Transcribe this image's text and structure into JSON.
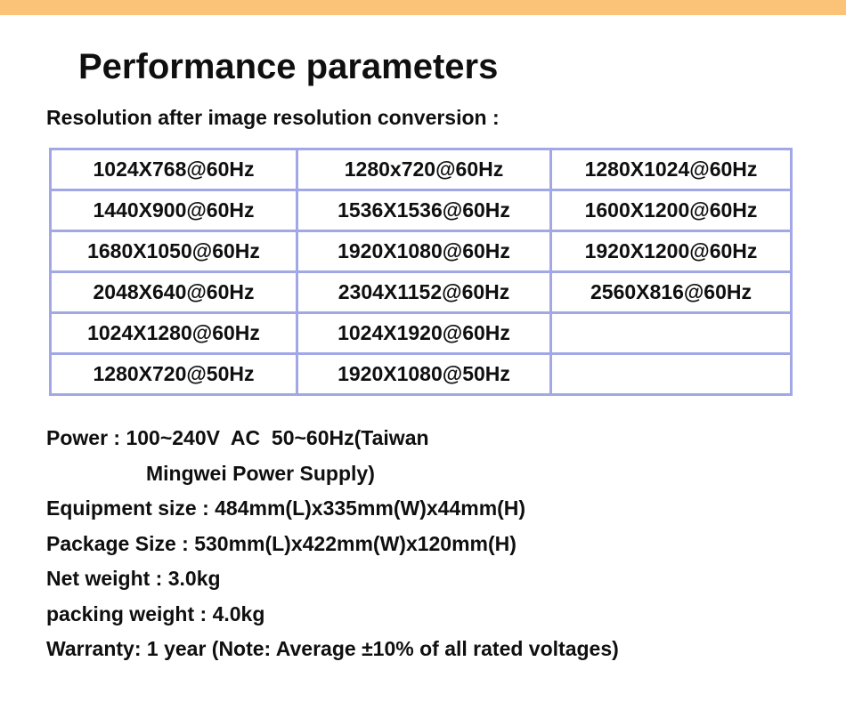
{
  "page": {
    "accent_bar_color": "#FAC377",
    "title": "Performance parameters",
    "subtitle": "Resolution after image resolution conversion :"
  },
  "table": {
    "border_color": "#A2A7E6",
    "columns": 3,
    "rows": [
      [
        "1024X768@60Hz",
        "1280x720@60Hz",
        "1280X1024@60Hz"
      ],
      [
        "1440X900@60Hz",
        "1536X1536@60Hz",
        "1600X1200@60Hz"
      ],
      [
        "1680X1050@60Hz",
        "1920X1080@60Hz",
        "1920X1200@60Hz"
      ],
      [
        "2048X640@60Hz",
        "2304X1152@60Hz",
        "2560X816@60Hz"
      ],
      [
        "1024X1280@60Hz",
        "1024X1920@60Hz",
        ""
      ],
      [
        "1280X720@50Hz",
        "1920X1080@50Hz",
        ""
      ]
    ]
  },
  "specs": {
    "lines": [
      {
        "text": "Power : 100~240V  AC  50~60Hz(Taiwan",
        "indent": false
      },
      {
        "text": "Mingwei Power Supply)",
        "indent": true
      },
      {
        "text": "Equipment size : 484mm(L)x335mm(W)x44mm(H)",
        "indent": false
      },
      {
        "text": "Package Size : 530mm(L)x422mm(W)x120mm(H)",
        "indent": false
      },
      {
        "text": "Net weight : 3.0kg",
        "indent": false
      },
      {
        "text": "packing weight : 4.0kg",
        "indent": false
      },
      {
        "text": "Warranty: 1 year (Note: Average ±10% of all rated voltages)",
        "indent": false
      }
    ]
  }
}
